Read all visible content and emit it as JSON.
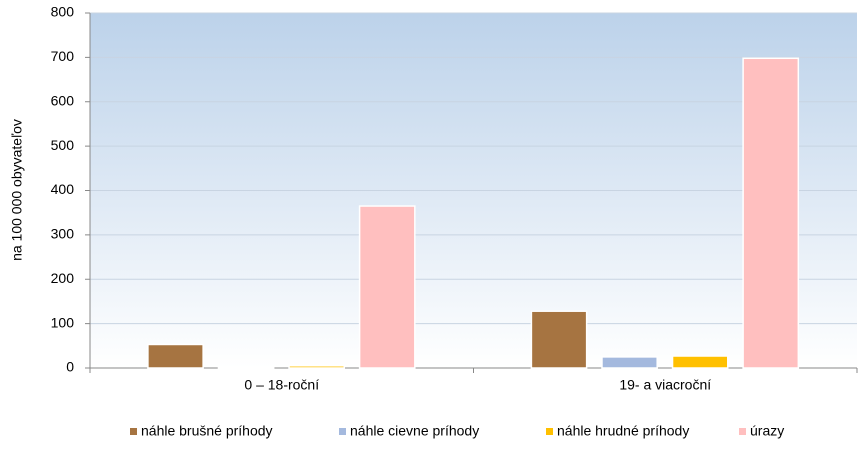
{
  "chart_data": {
    "type": "bar",
    "ylabel": "na 100 000 obyvateľov",
    "categories": [
      "0 – 18-roční",
      "19- a viacroční"
    ],
    "series": [
      {
        "name": "náhle brušné príhody",
        "color": "#a67441",
        "values": [
          53,
          128
        ]
      },
      {
        "name": "náhle cievne príhody",
        "color": "#a4b9de",
        "values": [
          1,
          25
        ]
      },
      {
        "name": "náhle hrudné príhody",
        "color": "#ffc000",
        "values": [
          5,
          27
        ]
      },
      {
        "name": "úrazy",
        "color": "#ffbfbf",
        "values": [
          365,
          698
        ]
      }
    ],
    "ylim": [
      0,
      800
    ],
    "yticks": [
      0,
      100,
      200,
      300,
      400,
      500,
      600,
      700,
      800
    ],
    "grid": true,
    "legend": "bottom"
  }
}
